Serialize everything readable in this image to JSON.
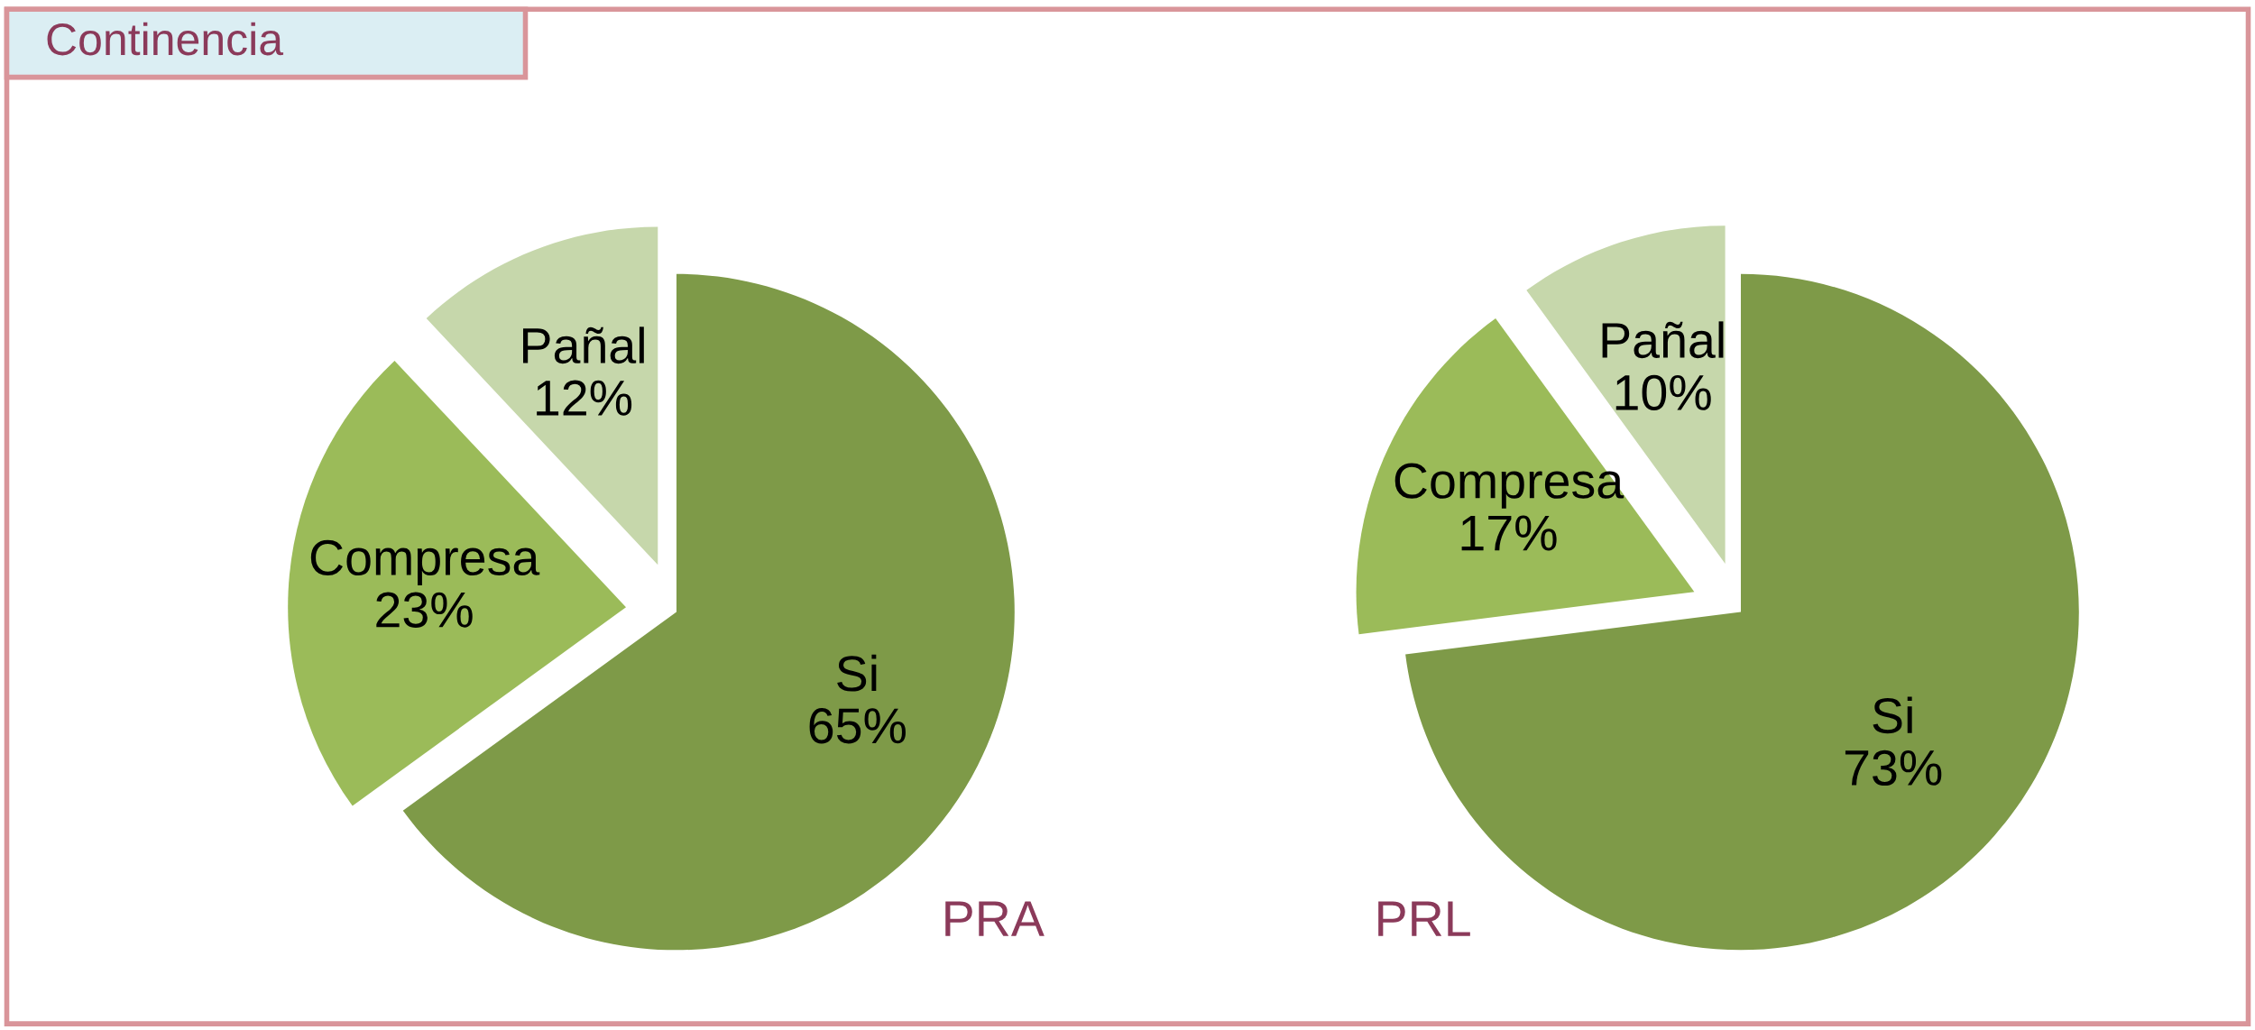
{
  "chart_data": [
    {
      "type": "pie",
      "title": "Continencia",
      "xlabel": "PRA",
      "categories": [
        "Si",
        "Compresa",
        "Pañal"
      ],
      "values": [
        65,
        23,
        12
      ],
      "value_labels": [
        "65%",
        "23%",
        "12%"
      ],
      "colors": [
        "#7e9a48",
        "#9bbb59",
        "#c6d7ab"
      ]
    },
    {
      "type": "pie",
      "xlabel": "PRL",
      "categories": [
        "Si",
        "Compresa",
        "Pañal"
      ],
      "values": [
        73,
        17,
        10
      ],
      "value_labels": [
        "73%",
        "17%",
        "10%"
      ],
      "colors": [
        "#7e9a48",
        "#9bbb59",
        "#c6d7ab"
      ]
    }
  ]
}
